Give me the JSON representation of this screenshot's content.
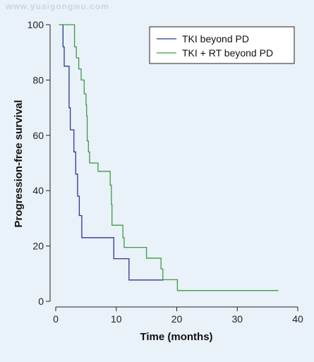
{
  "watermark": "www.yuaigongwu.com",
  "chart_data": {
    "type": "line",
    "title": "",
    "xlabel": "Time (months)",
    "ylabel": "Progression-free survival",
    "xlim": [
      0,
      40
    ],
    "ylim": [
      0,
      100
    ],
    "x_ticks": [
      0,
      10,
      20,
      30,
      40
    ],
    "y_ticks": [
      0,
      20,
      40,
      60,
      80,
      100
    ],
    "grid": false,
    "legend_position": "top-right",
    "series": [
      {
        "name": "TKI beyond PD",
        "color": "#2b3990",
        "step": true,
        "points": [
          [
            1.0,
            100
          ],
          [
            1.2,
            92
          ],
          [
            1.4,
            85
          ],
          [
            2.1,
            85
          ],
          [
            2.2,
            70
          ],
          [
            2.4,
            62
          ],
          [
            2.9,
            62
          ],
          [
            3.0,
            54
          ],
          [
            3.3,
            46
          ],
          [
            3.6,
            38
          ],
          [
            3.9,
            31
          ],
          [
            4.2,
            31
          ],
          [
            4.3,
            23
          ],
          [
            9.5,
            23
          ],
          [
            9.6,
            15.4
          ],
          [
            12.0,
            15.4
          ],
          [
            12.1,
            7.7
          ],
          [
            17.8,
            7.7
          ]
        ]
      },
      {
        "name": "TKI + RT beyond PD",
        "color": "#3f9a47",
        "step": true,
        "points": [
          [
            0.5,
            100
          ],
          [
            3.0,
            100
          ],
          [
            3.1,
            92
          ],
          [
            3.4,
            88
          ],
          [
            3.8,
            84
          ],
          [
            4.2,
            80
          ],
          [
            4.7,
            75
          ],
          [
            5.0,
            71
          ],
          [
            5.1,
            67
          ],
          [
            5.2,
            58
          ],
          [
            5.4,
            54
          ],
          [
            5.6,
            50
          ],
          [
            6.8,
            50
          ],
          [
            7.0,
            47
          ],
          [
            8.8,
            47
          ],
          [
            9.0,
            42
          ],
          [
            9.2,
            35
          ],
          [
            9.3,
            27.5
          ],
          [
            11.0,
            27.5
          ],
          [
            11.1,
            23
          ],
          [
            11.3,
            19.5
          ],
          [
            14.9,
            19.5
          ],
          [
            15.0,
            15.6
          ],
          [
            17.2,
            15.6
          ],
          [
            17.4,
            11.7
          ],
          [
            17.7,
            7.8
          ],
          [
            20.0,
            7.8
          ],
          [
            20.1,
            3.9
          ],
          [
            36.8,
            3.9
          ]
        ]
      }
    ]
  }
}
